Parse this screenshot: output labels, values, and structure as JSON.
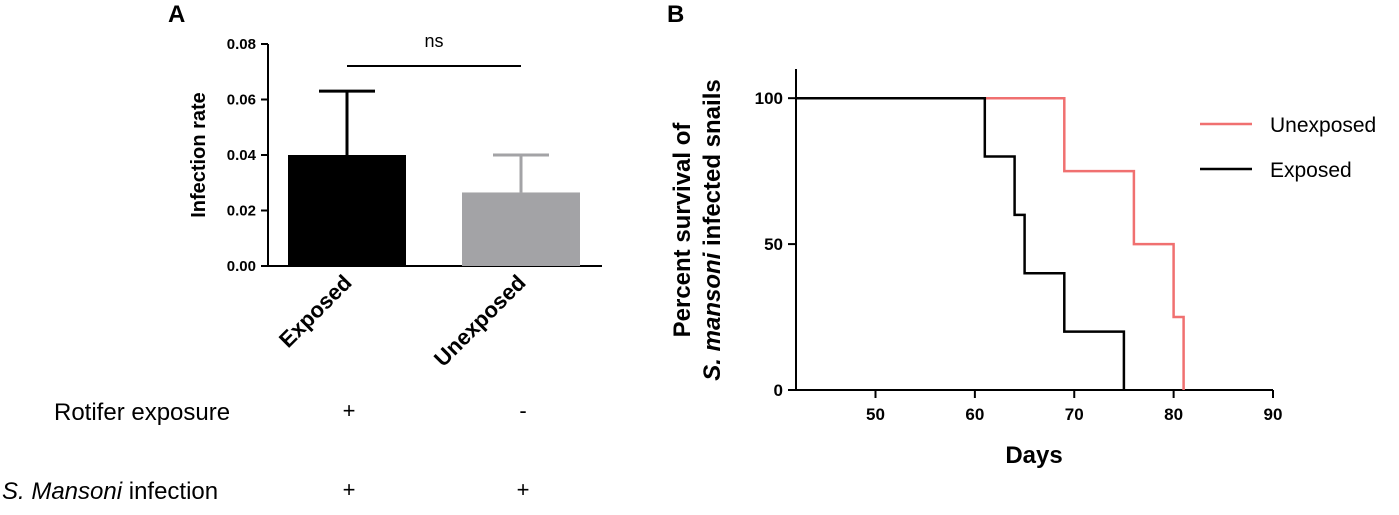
{
  "chart_data": [
    {
      "panel": "A",
      "type": "bar",
      "ylabel": "Infection rate",
      "ylim": [
        0,
        0.08
      ],
      "yticks": [
        "0.00",
        "0.02",
        "0.04",
        "0.06",
        "0.08"
      ],
      "categories": [
        "Exposed",
        "Unexposed"
      ],
      "values": [
        0.04,
        0.0265
      ],
      "error_upper": [
        0.063,
        0.04
      ],
      "bar_colors": [
        "#000000",
        "#a3a3a6"
      ],
      "significance": "ns",
      "conditions": [
        {
          "label": "Rotifer exposure",
          "label_italic": "",
          "values": [
            "+",
            "-"
          ]
        },
        {
          "label": " infection",
          "label_italic": "S. Mansoni",
          "values": [
            "+",
            "+"
          ]
        }
      ]
    },
    {
      "panel": "B",
      "type": "line",
      "xlabel": "Days",
      "ylabel_part1": "Percent survival of",
      "ylabel_italic": "S. mansoni",
      "ylabel_part2": " infected snails",
      "xlim": [
        42,
        90
      ],
      "ylim": [
        0,
        110
      ],
      "xticks": [
        "50",
        "60",
        "70",
        "80",
        "90"
      ],
      "yticks": [
        "0",
        "50",
        "100"
      ],
      "legend_position": "top-right",
      "series": [
        {
          "name": "Unexposed",
          "color": "#f07070",
          "steps": [
            [
              42,
              100
            ],
            [
              69,
              100
            ],
            [
              69,
              75
            ],
            [
              76,
              75
            ],
            [
              76,
              50
            ],
            [
              80,
              50
            ],
            [
              80,
              25
            ],
            [
              81,
              25
            ],
            [
              81,
              0
            ]
          ]
        },
        {
          "name": "Exposed",
          "color": "#000000",
          "steps": [
            [
              42,
              100
            ],
            [
              61,
              100
            ],
            [
              61,
              80
            ],
            [
              64,
              80
            ],
            [
              64,
              60
            ],
            [
              65,
              60
            ],
            [
              65,
              40
            ],
            [
              69,
              40
            ],
            [
              69,
              20
            ],
            [
              75,
              20
            ],
            [
              75,
              0
            ]
          ]
        }
      ]
    }
  ]
}
